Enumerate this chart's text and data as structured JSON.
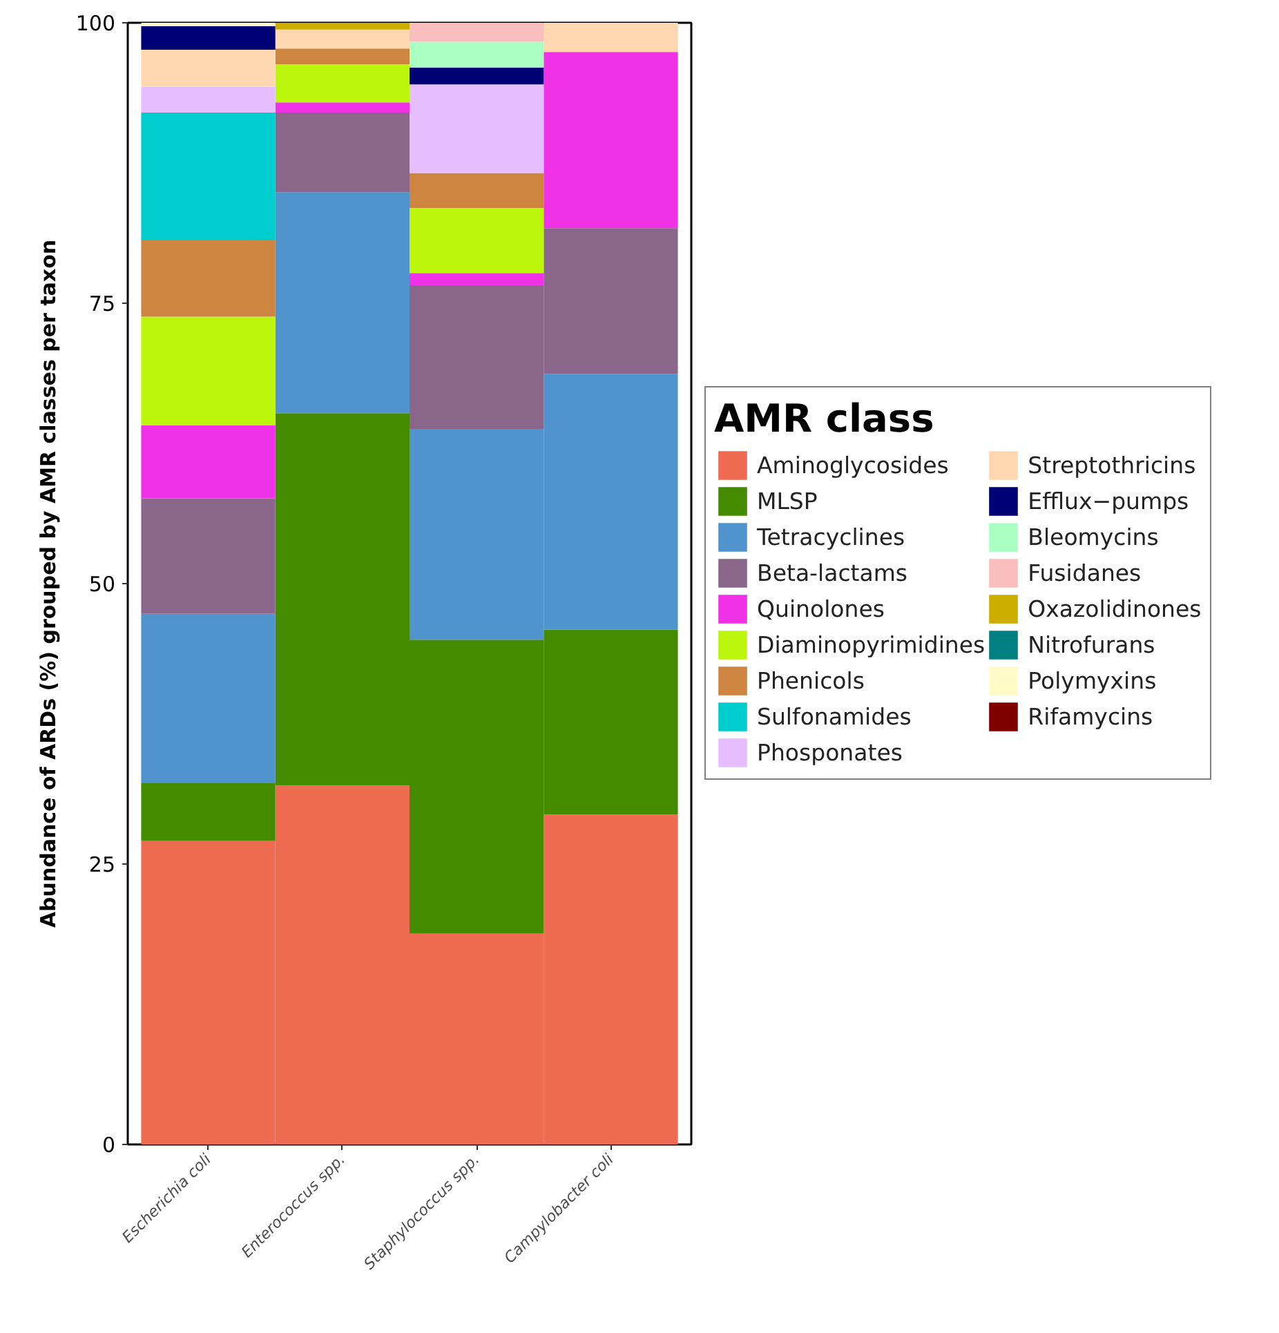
{
  "chart_data": {
    "type": "bar",
    "stacked": true,
    "ylabel": "Abundance of ARDs (%) grouped by AMR classes per taxon",
    "legend_title": "AMR class",
    "categories": [
      "Escherichia coli",
      "Enterococcus spp.",
      "Staphylococcus spp.",
      "Campylobacter coli"
    ],
    "series": [
      {
        "name": "Aminoglycosides",
        "color": "#ee6a50",
        "values": [
          27.1,
          32.0,
          18.8,
          29.4
        ]
      },
      {
        "name": "MLSP",
        "color": "#458b00",
        "values": [
          5.1,
          33.2,
          26.2,
          16.5
        ]
      },
      {
        "name": "Tetracyclines",
        "color": "#4f94cd",
        "values": [
          15.1,
          19.7,
          18.8,
          22.8
        ]
      },
      {
        "name": "Beta-lactams",
        "color": "#8b668b",
        "values": [
          10.3,
          7.1,
          12.8,
          13.0
        ]
      },
      {
        "name": "Quinolones",
        "color": "#f032e6",
        "values": [
          6.5,
          0.9,
          1.1,
          15.7
        ]
      },
      {
        "name": "Diaminopyrimidines",
        "color": "#bcf60c",
        "values": [
          9.7,
          3.4,
          5.8,
          null
        ]
      },
      {
        "name": "Phenicols",
        "color": "#cd853f",
        "values": [
          6.8,
          1.4,
          3.1,
          null
        ]
      },
      {
        "name": "Sulfonamides",
        "color": "#00cdcd",
        "values": [
          11.4,
          null,
          null,
          null
        ]
      },
      {
        "name": "Phosponates",
        "color": "#e6beff",
        "values": [
          2.3,
          null,
          7.9,
          null
        ]
      },
      {
        "name": "Streptothricins",
        "color": "#ffd8b1",
        "values": [
          3.3,
          1.7,
          null,
          2.6
        ]
      },
      {
        "name": "Efflux−pumps",
        "color": "#000075",
        "values": [
          2.1,
          null,
          1.5,
          null
        ]
      },
      {
        "name": "Bleomycins",
        "color": "#aaffc3",
        "values": [
          null,
          null,
          2.3,
          null
        ]
      },
      {
        "name": "Fusidanes",
        "color": "#fabebe",
        "values": [
          null,
          null,
          1.7,
          null
        ]
      },
      {
        "name": "Oxazolidinones",
        "color": "#cdad00",
        "values": [
          null,
          0.6,
          null,
          null
        ]
      },
      {
        "name": "Nitrofurans",
        "color": "#008080",
        "values": [
          null,
          null,
          null,
          null
        ]
      },
      {
        "name": "Polymyxins",
        "color": "#fffac8",
        "values": [
          0.3,
          null,
          null,
          null
        ]
      },
      {
        "name": "Rifamycins",
        "color": "#800000",
        "values": [
          null,
          null,
          null,
          null
        ]
      }
    ],
    "ylim": [
      0,
      100
    ],
    "yticks": [
      0,
      25,
      50,
      75,
      100
    ],
    "grid": false,
    "legend": "right"
  }
}
